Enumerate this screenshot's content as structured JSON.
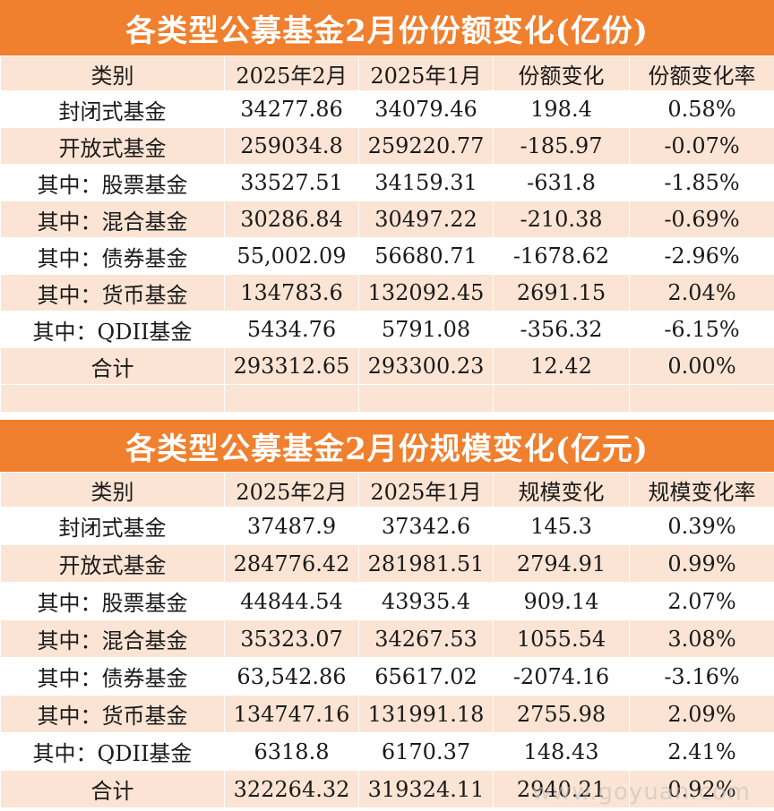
{
  "table1": {
    "title": "各类型公募基金2月份份额变化(亿份)",
    "headers": [
      "类别",
      "2025年2月",
      "2025年1月",
      "份额变化",
      "份额变化率"
    ],
    "rows": [
      [
        "封闭式基金",
        "34277.86",
        "34079.46",
        "198.4",
        "0.58%"
      ],
      [
        "开放式基金",
        "259034.8",
        "259220.77",
        "-185.97",
        "-0.07%"
      ],
      [
        "其中：股票基金",
        "33527.51",
        "34159.31",
        "-631.8",
        "-1.85%"
      ],
      [
        "其中：混合基金",
        "30286.84",
        "30497.22",
        "-210.38",
        "-0.69%"
      ],
      [
        "其中：债券基金",
        "55,002.09",
        "56680.71",
        "-1678.62",
        "-2.96%"
      ],
      [
        "其中：货币基金",
        "134783.6",
        "132092.45",
        "2691.15",
        "2.04%"
      ],
      [
        "其中：QDII基金",
        "5434.76",
        "5791.08",
        "-356.32",
        "-6.15%"
      ],
      [
        "合计",
        "293312.65",
        "293300.23",
        "12.42",
        "0.00%"
      ]
    ]
  },
  "table2": {
    "title": "各类型公募基金2月份规模变化(亿元)",
    "headers": [
      "类别",
      "2025年2月",
      "2025年1月",
      "规模变化",
      "规模变化率"
    ],
    "rows": [
      [
        "封闭式基金",
        "37487.9",
        "37342.6",
        "145.3",
        "0.39%"
      ],
      [
        "开放式基金",
        "284776.42",
        "281981.51",
        "2794.91",
        "0.99%"
      ],
      [
        "其中：股票基金",
        "44844.54",
        "43935.4",
        "909.14",
        "2.07%"
      ],
      [
        "其中：混合基金",
        "35323.07",
        "34267.53",
        "1055.54",
        "3.08%"
      ],
      [
        "其中：债券基金",
        "63,542.86",
        "65617.02",
        "-2074.16",
        "-3.16%"
      ],
      [
        "其中：货币基金",
        "134747.16",
        "131991.18",
        "2755.98",
        "2.09%"
      ],
      [
        "其中：QDII基金",
        "6318.8",
        "6170.37",
        "148.43",
        "2.41%"
      ],
      [
        "合计",
        "322264.32",
        "319324.11",
        "2940.21",
        "0.92%"
      ]
    ]
  },
  "watermark": "www.goyuan.com",
  "colors": {
    "accent": "#f07f2e",
    "stripe": "#fce4d4",
    "white": "#ffffff"
  }
}
